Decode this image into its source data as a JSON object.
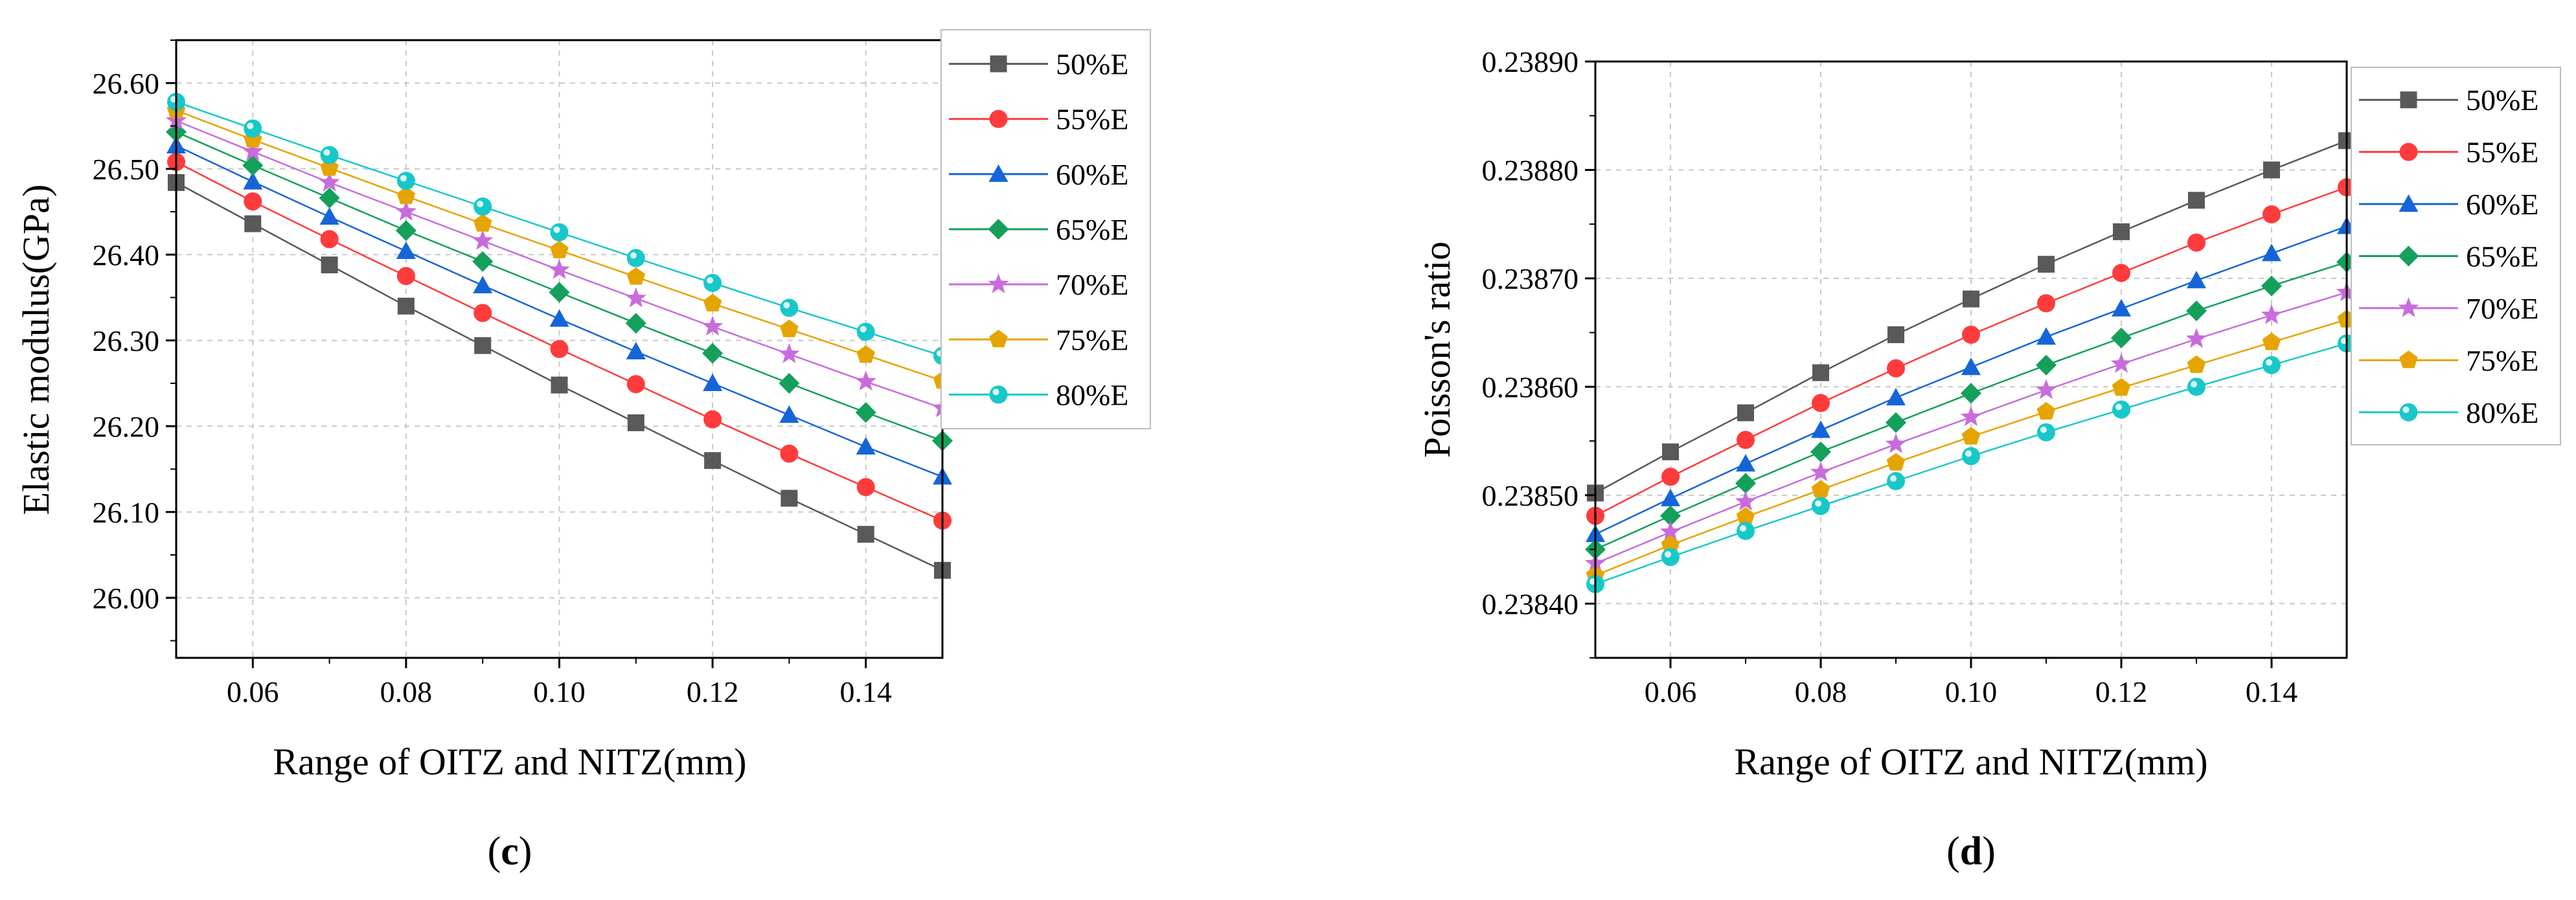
{
  "chart_data": [
    {
      "type": "line",
      "panel": "c",
      "panel_label": {
        "open": "(",
        "letter": "c",
        "close": ")"
      },
      "xlabel": "Range of OITZ and NITZ(mm)",
      "ylabel": "Elastic modulus(GPa)",
      "xlim": [
        0.05,
        0.15
      ],
      "ylim": [
        25.93,
        26.65
      ],
      "xticks": [
        0.06,
        0.08,
        0.1,
        0.12,
        0.14
      ],
      "xtick_labels": [
        "0.06",
        "0.08",
        "0.10",
        "0.12",
        "0.14"
      ],
      "yticks": [
        26.0,
        26.1,
        26.2,
        26.3,
        26.4,
        26.5,
        26.6
      ],
      "ytick_labels": [
        "26.00",
        "26.10",
        "26.20",
        "26.30",
        "26.40",
        "26.50",
        "26.60"
      ],
      "grid": true,
      "legend_position": "top-right",
      "x": [
        0.05,
        0.06,
        0.07,
        0.08,
        0.09,
        0.1,
        0.11,
        0.12,
        0.13,
        0.14,
        0.15
      ],
      "series": [
        {
          "name": "50%E",
          "color": "#595959",
          "marker": "square",
          "values": [
            26.484,
            26.436,
            26.388,
            26.34,
            26.294,
            26.248,
            26.204,
            26.16,
            26.116,
            26.074,
            26.032
          ]
        },
        {
          "name": "55%E",
          "color": "#ff3b3b",
          "marker": "circle",
          "values": [
            26.508,
            26.462,
            26.418,
            26.375,
            26.332,
            26.29,
            26.249,
            26.208,
            26.168,
            26.129,
            26.09
          ]
        },
        {
          "name": "60%E",
          "color": "#1565d8",
          "marker": "triangle",
          "values": [
            26.527,
            26.485,
            26.444,
            26.404,
            26.364,
            26.325,
            26.287,
            26.25,
            26.213,
            26.176,
            26.141
          ]
        },
        {
          "name": "65%E",
          "color": "#14a05a",
          "marker": "diamond",
          "values": [
            26.543,
            26.504,
            26.466,
            26.428,
            26.392,
            26.356,
            26.32,
            26.285,
            26.25,
            26.216,
            26.183
          ]
        },
        {
          "name": "70%E",
          "color": "#c86cdc",
          "marker": "star",
          "values": [
            26.556,
            26.52,
            26.484,
            26.45,
            26.416,
            26.382,
            26.349,
            26.316,
            26.284,
            26.252,
            26.221
          ]
        },
        {
          "name": "75%E",
          "color": "#e6a400",
          "marker": "pentagon",
          "values": [
            26.568,
            26.534,
            26.501,
            26.468,
            26.436,
            26.405,
            26.374,
            26.343,
            26.313,
            26.283,
            26.253
          ]
        },
        {
          "name": "80%E",
          "color": "#18c8c8",
          "marker": "circle-hl",
          "values": [
            26.578,
            26.547,
            26.516,
            26.486,
            26.456,
            26.426,
            26.396,
            26.367,
            26.338,
            26.31,
            26.282
          ]
        }
      ]
    },
    {
      "type": "line",
      "panel": "d",
      "panel_label": {
        "open": "(",
        "letter": "d",
        "close": ")"
      },
      "xlabel": "Range of OITZ and NITZ(mm)",
      "ylabel": "Poisson's ratio",
      "xlim": [
        0.05,
        0.15
      ],
      "ylim": [
        0.23835,
        0.2389
      ],
      "xticks": [
        0.06,
        0.08,
        0.1,
        0.12,
        0.14
      ],
      "xtick_labels": [
        "0.06",
        "0.08",
        "0.10",
        "0.12",
        "0.14"
      ],
      "yticks": [
        0.2384,
        0.2385,
        0.2386,
        0.2387,
        0.2388,
        0.2389
      ],
      "ytick_labels": [
        "0.23840",
        "0.23850",
        "0.23860",
        "0.23870",
        "0.23880",
        "0.23890"
      ],
      "grid": true,
      "legend_position": "top-right-outside",
      "x": [
        0.05,
        0.06,
        0.07,
        0.08,
        0.09,
        0.1,
        0.11,
        0.12,
        0.13,
        0.14,
        0.15
      ],
      "series": [
        {
          "name": "50%E",
          "color": "#595959",
          "marker": "square",
          "values": [
            0.238502,
            0.23854,
            0.238576,
            0.238613,
            0.238648,
            0.238681,
            0.238713,
            0.238743,
            0.238772,
            0.2388,
            0.238827
          ]
        },
        {
          "name": "55%E",
          "color": "#ff3b3b",
          "marker": "circle",
          "values": [
            0.238481,
            0.238517,
            0.238551,
            0.238585,
            0.238617,
            0.238648,
            0.238677,
            0.238705,
            0.238733,
            0.238759,
            0.238784
          ]
        },
        {
          "name": "60%E",
          "color": "#1565d8",
          "marker": "triangle",
          "values": [
            0.238464,
            0.238497,
            0.238529,
            0.23856,
            0.23859,
            0.238618,
            0.238646,
            0.238672,
            0.238698,
            0.238723,
            0.238748
          ]
        },
        {
          "name": "65%E",
          "color": "#14a05a",
          "marker": "diamond",
          "values": [
            0.23845,
            0.238481,
            0.238511,
            0.23854,
            0.238567,
            0.238594,
            0.23862,
            0.238645,
            0.23867,
            0.238693,
            0.238715
          ]
        },
        {
          "name": "70%E",
          "color": "#c86cdc",
          "marker": "star",
          "values": [
            0.238437,
            0.238466,
            0.238494,
            0.238521,
            0.238547,
            0.238572,
            0.238597,
            0.238621,
            0.238644,
            0.238666,
            0.238687
          ]
        },
        {
          "name": "75%E",
          "color": "#e6a400",
          "marker": "pentagon",
          "values": [
            0.238426,
            0.238454,
            0.23848,
            0.238505,
            0.23853,
            0.238554,
            0.238577,
            0.238599,
            0.23862,
            0.238641,
            0.238662
          ]
        },
        {
          "name": "80%E",
          "color": "#18c8c8",
          "marker": "circle-hl",
          "values": [
            0.238418,
            0.238443,
            0.238467,
            0.23849,
            0.238513,
            0.238536,
            0.238558,
            0.238579,
            0.2386,
            0.23862,
            0.23864
          ]
        }
      ]
    }
  ]
}
